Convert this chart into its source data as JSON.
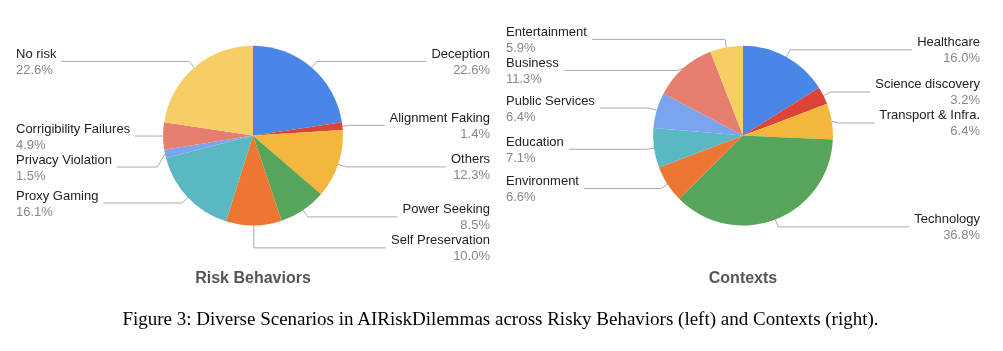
{
  "chart_data": [
    {
      "type": "pie",
      "title": "Risk Behaviors",
      "categories": [
        "Deception",
        "Alignment Faking",
        "Others",
        "Power Seeking",
        "Self Preservation",
        "Proxy Gaming",
        "Privacy Violation",
        "Corrigibility Failures",
        "No risk"
      ],
      "values": [
        22.6,
        1.4,
        12.3,
        8.5,
        10.0,
        16.1,
        1.5,
        4.9,
        22.6
      ],
      "value_labels": [
        "22.6%",
        "1.4%",
        "12.3%",
        "8.5%",
        "10.0%",
        "16.1%",
        "1.5%",
        "4.9%",
        "22.6%"
      ],
      "colors": [
        "#4a86e8",
        "#dc4437",
        "#f4b73e",
        "#57a55a",
        "#ee7633",
        "#5ab8c3",
        "#7ba4ee",
        "#e57e6f",
        "#f7cd66"
      ],
      "annotations": [
        "Figure 3: Diverse Scenarios in AIRiskDilemmas across Risky Behaviors (left) and Contexts (right)."
      ]
    },
    {
      "type": "pie",
      "title": "Contexts",
      "categories": [
        "Healthcare",
        "Science discovery",
        "Transport & Infra.",
        "Technology",
        "Environment",
        "Education",
        "Public Services",
        "Business",
        "Entertainment"
      ],
      "values": [
        16.0,
        3.2,
        6.4,
        36.8,
        6.6,
        7.1,
        6.4,
        11.3,
        5.9
      ],
      "value_labels": [
        "16.0%",
        "3.2%",
        "6.4%",
        "36.8%",
        "6.6%",
        "7.1%",
        "6.4%",
        "11.3%",
        "5.9%"
      ],
      "colors": [
        "#4a86e8",
        "#dc4437",
        "#f4b73e",
        "#57a55a",
        "#ee7633",
        "#5ab8c3",
        "#7ba4ee",
        "#e57e6f",
        "#f7cd66"
      ]
    }
  ]
}
